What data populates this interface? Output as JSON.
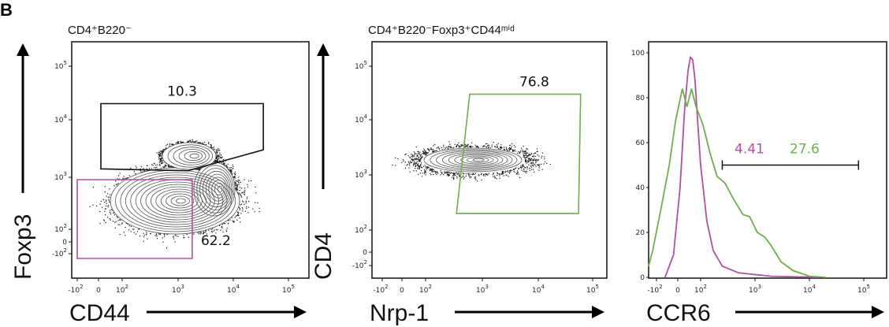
{
  "panel_letter": "B",
  "colors": {
    "magenta": "#b14fa5",
    "green": "#6cb04a",
    "black": "#111111"
  },
  "chart_data": [
    {
      "type": "scatter",
      "title": "CD4⁺B220⁻",
      "xlabel": "CD44",
      "ylabel": "Foxp3",
      "x_scale": "biexponential",
      "y_scale": "biexponential",
      "xticks": [
        "-10^2",
        "0",
        "10^2",
        "10^3",
        "10^4",
        "10^5"
      ],
      "yticks": [
        "10^5",
        "10^4",
        "10^3",
        "10^2",
        "0",
        "-10^2"
      ],
      "gates": [
        {
          "label": "10.3",
          "color": "#111111",
          "vertices": [
            [
              10,
              20000
            ],
            [
              35000,
              20000
            ],
            [
              35000,
              3000
            ],
            [
              1500,
              1300
            ],
            [
              10,
              1400
            ]
          ]
        },
        {
          "label": "62.2",
          "color": "#b14fa5",
          "vertices": [
            [
              -100,
              900
            ],
            [
              1800,
              900
            ],
            [
              1800,
              -250
            ],
            [
              -100,
              -250
            ]
          ]
        }
      ]
    },
    {
      "type": "scatter",
      "title": "CD4⁺B220⁻Foxp3⁺CD44ᵐⁱᵈ",
      "xlabel": "Nrp-1",
      "ylabel": "CD4",
      "x_scale": "biexponential",
      "y_scale": "biexponential",
      "xticks": [
        "-10^2",
        "0",
        "10^2",
        "10^3",
        "10^4",
        "10^5"
      ],
      "yticks": [
        "10^5",
        "10^4",
        "10^3",
        "10^2",
        "0",
        "-10^2"
      ],
      "gates": [
        {
          "label": "76.8",
          "color": "#6cb04a",
          "vertices": [
            [
              600,
              30000
            ],
            [
              60000,
              30000
            ],
            [
              55000,
              200
            ],
            [
              350,
              200
            ]
          ]
        }
      ]
    },
    {
      "type": "line",
      "title": "",
      "xlabel": "CCR6",
      "ylabel": "",
      "x_scale": "biexponential",
      "xticks": [
        "-10^2",
        "0",
        "10^2",
        "10^3",
        "10^4",
        "10^5"
      ],
      "yticks": [
        "0",
        "20",
        "40",
        "60",
        "80",
        "100"
      ],
      "ylim": [
        0,
        100
      ],
      "series": [
        {
          "color": "#b14fa5",
          "points": [
            [
              -60,
              0
            ],
            [
              -20,
              10
            ],
            [
              10,
              40
            ],
            [
              30,
              75
            ],
            [
              45,
              92
            ],
            [
              55,
              98
            ],
            [
              65,
              97
            ],
            [
              75,
              88
            ],
            [
              90,
              65
            ],
            [
              100,
              50
            ],
            [
              130,
              25
            ],
            [
              170,
              12
            ],
            [
              250,
              5
            ],
            [
              500,
              2
            ],
            [
              2000,
              0.5
            ],
            [
              15000,
              0
            ]
          ]
        },
        {
          "color": "#6cb04a",
          "points": [
            [
              -300,
              6
            ],
            [
              -250,
              5
            ],
            [
              -150,
              12
            ],
            [
              -80,
              30
            ],
            [
              -40,
              50
            ],
            [
              -10,
              70
            ],
            [
              20,
              84
            ],
            [
              40,
              76
            ],
            [
              60,
              84
            ],
            [
              80,
              76
            ],
            [
              110,
              68
            ],
            [
              150,
              55
            ],
            [
              200,
              45
            ],
            [
              280,
              42
            ],
            [
              400,
              35
            ],
            [
              600,
              28
            ],
            [
              800,
              27
            ],
            [
              1100,
              20
            ],
            [
              1500,
              18
            ],
            [
              2000,
              14
            ],
            [
              3000,
              7
            ],
            [
              5000,
              3
            ],
            [
              10000,
              0.5
            ],
            [
              20000,
              0
            ]
          ]
        }
      ],
      "interval_gate": {
        "range": [
          250,
          80000
        ],
        "y": 50,
        "labels": [
          {
            "text": "4.41",
            "color": "#b14fa5"
          },
          {
            "text": "27.6",
            "color": "#6cb04a"
          }
        ]
      }
    }
  ]
}
